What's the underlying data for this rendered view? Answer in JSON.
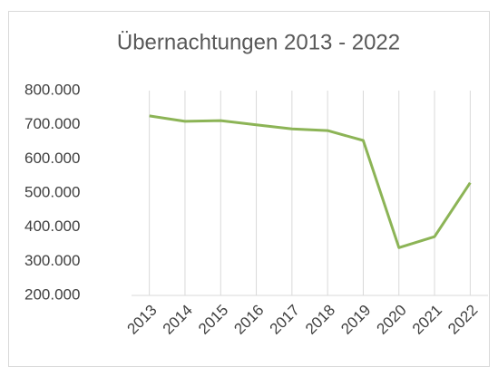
{
  "chart_data": {
    "type": "line",
    "title": "Übernachtungen 2013 - 2022",
    "categories": [
      "2013",
      "2014",
      "2015",
      "2016",
      "2017",
      "2018",
      "2019",
      "2020",
      "2021",
      "2022"
    ],
    "series": [
      {
        "name": "Übernachtungen",
        "color": "#8cb456",
        "values": [
          726000,
          710000,
          712000,
          700000,
          688000,
          683000,
          654000,
          340000,
          372000,
          530000
        ]
      }
    ],
    "ylim": [
      200000,
      800000
    ],
    "yticks": [
      {
        "value": 200000,
        "label": "200.000"
      },
      {
        "value": 300000,
        "label": "300.000"
      },
      {
        "value": 400000,
        "label": "400.000"
      },
      {
        "value": 500000,
        "label": "500.000"
      },
      {
        "value": 600000,
        "label": "600.000"
      },
      {
        "value": 700000,
        "label": "700.000"
      },
      {
        "value": 800000,
        "label": "800.000"
      }
    ],
    "grid": "x"
  }
}
